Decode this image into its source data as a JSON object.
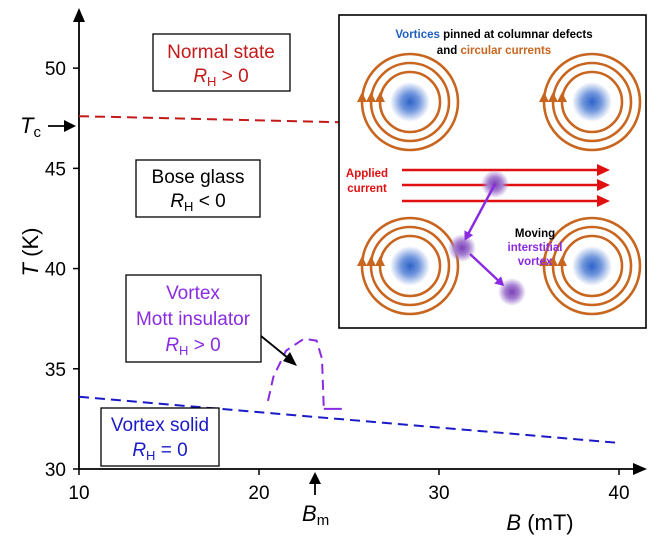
{
  "chart_data": {
    "type": "line",
    "xlabel": {
      "var": "B",
      "unit": " (mT)"
    },
    "ylabel": {
      "var": "T",
      "unit": " (K)"
    },
    "xlim": [
      10,
      41
    ],
    "ylim": [
      30,
      53
    ],
    "xticks": [
      10,
      20,
      30,
      40
    ],
    "yticks": [
      30,
      35,
      40,
      45,
      50
    ],
    "series": [
      {
        "key": "tc",
        "color": "#c41a1a",
        "style": "dashed",
        "points": [
          [
            10,
            47.6
          ],
          [
            24.5,
            47.3
          ]
        ]
      },
      {
        "key": "solid",
        "color": "#1a1ac8",
        "style": "dashed",
        "points": [
          [
            10,
            33.6
          ],
          [
            40,
            31.3
          ]
        ]
      },
      {
        "key": "mott",
        "color": "#8a2be2",
        "style": "dashed",
        "points": [
          [
            20.5,
            33.4
          ],
          [
            20.8,
            34.6
          ],
          [
            21.5,
            35.9
          ],
          [
            22.5,
            36.5
          ],
          [
            23.2,
            36.4
          ],
          [
            23.5,
            35.5
          ],
          [
            23.6,
            33.0
          ]
        ]
      },
      {
        "key": "mott-base",
        "color": "#8a2be2",
        "style": "solid",
        "points": [
          [
            23.6,
            33.0
          ],
          [
            24.6,
            33.0
          ]
        ]
      }
    ],
    "annotations": {
      "tc_label": {
        "main": "T",
        "sub": "c",
        "y": 47.5
      },
      "bm_label": {
        "main": "B",
        "sub": "m",
        "x": 23.0
      },
      "regions": [
        {
          "key": "normal",
          "color": "#c41a1a",
          "line1": "Normal state",
          "rh_sub": "H",
          "rh_rel": " > 0"
        },
        {
          "key": "glass",
          "color": "#000000",
          "line1": "Bose glass",
          "rh_sub": "H",
          "rh_rel": " < 0"
        },
        {
          "key": "mott",
          "color": "#8a2be2",
          "line1": "Vortex",
          "line2": "Mott insulator",
          "rh_sub": "H",
          "rh_rel": " > 0"
        },
        {
          "key": "solid",
          "color": "#1a1ac8",
          "line1": "Vortex solid",
          "rh_sub": "H",
          "rh_rel": " = 0"
        }
      ]
    },
    "inset": {
      "title_w1": "Vortices",
      "title_w2": " pinned at columnar defects",
      "title_w3": "and ",
      "title_w4": "circular currents",
      "applied_1": "Applied",
      "applied_2": "current",
      "moving_1": "Moving",
      "moving_2": "interstitial",
      "moving_3": "vortex",
      "colors": {
        "vortex": "#1f5fbf",
        "current": "#c8651e",
        "applied": "#e01010",
        "moving": "#8a2be2"
      }
    }
  }
}
